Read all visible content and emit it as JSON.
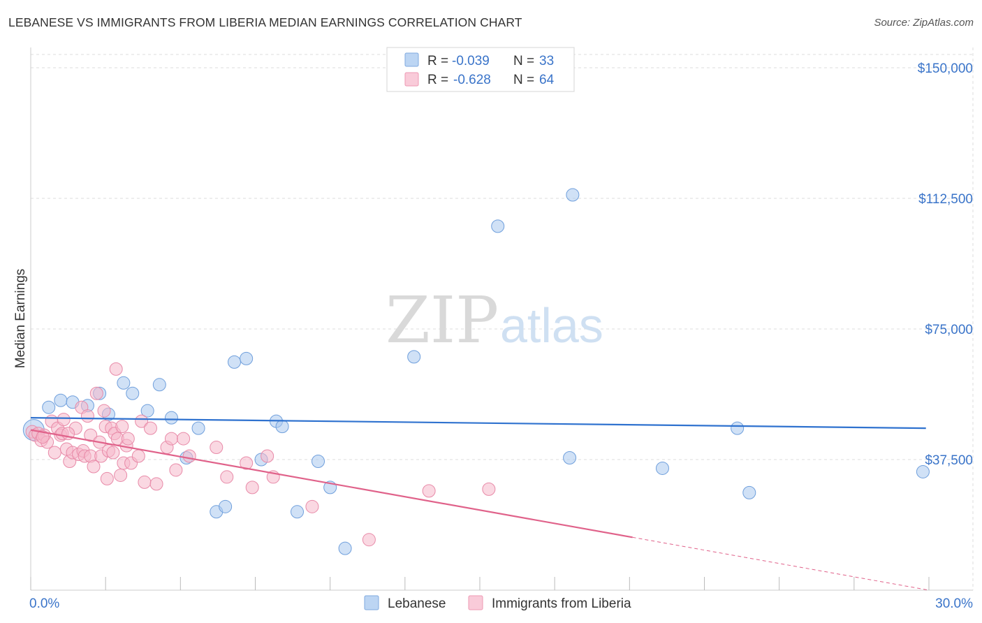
{
  "header": {
    "title": "LEBANESE VS IMMIGRANTS FROM LIBERIA MEDIAN EARNINGS CORRELATION CHART",
    "source": "Source: ZipAtlas.com"
  },
  "watermark": {
    "part1": "ZIP",
    "part2": "atlas"
  },
  "legend_top": {
    "rows": [
      {
        "r_label": "R =",
        "r_value": "-0.039",
        "n_label": "N =",
        "n_value": "33",
        "color": "#a9c8ef"
      },
      {
        "r_label": "R =",
        "r_value": "-0.628",
        "n_label": "N =",
        "n_value": "64",
        "color": "#f5b8cb"
      }
    ]
  },
  "legend_bottom": {
    "items": [
      {
        "label": "Lebanese",
        "color": "#a9c8ef"
      },
      {
        "label": "Immigrants from Liberia",
        "color": "#f5b8cb"
      }
    ]
  },
  "chart_data": {
    "type": "scatter",
    "title": "LEBANESE VS IMMIGRANTS FROM LIBERIA MEDIAN EARNINGS CORRELATION CHART",
    "xlabel": "",
    "ylabel": "Median Earnings",
    "xlim": [
      0,
      30
    ],
    "ylim": [
      0,
      155000
    ],
    "x_tick_labels": [
      "0.0%",
      "30.0%"
    ],
    "y_ticks": [
      37500,
      75000,
      112500,
      150000
    ],
    "y_tick_labels": [
      "$37,500",
      "$75,000",
      "$112,500",
      "$150,000"
    ],
    "grid": true,
    "legend_position": "top-center",
    "series": [
      {
        "name": "Lebanese",
        "color": "#a9c8ef",
        "stroke": "#6f9fdc",
        "trend_color": "#2f72cf",
        "trend": {
          "x0": 0,
          "y0": 49500,
          "x1": 29.9,
          "y1": 46500,
          "dash_from": null
        },
        "points": [
          [
            0.1,
            46000
          ],
          [
            0.6,
            52500
          ],
          [
            1.0,
            54500
          ],
          [
            1.4,
            54000
          ],
          [
            1.9,
            53000
          ],
          [
            2.3,
            56500
          ],
          [
            2.6,
            50500
          ],
          [
            3.1,
            59500
          ],
          [
            3.4,
            56500
          ],
          [
            3.9,
            51500
          ],
          [
            4.3,
            59000
          ],
          [
            4.7,
            49500
          ],
          [
            5.2,
            38000
          ],
          [
            5.6,
            46500
          ],
          [
            6.2,
            22500
          ],
          [
            6.5,
            24000
          ],
          [
            6.8,
            65500
          ],
          [
            7.2,
            66500
          ],
          [
            7.7,
            37500
          ],
          [
            8.2,
            48500
          ],
          [
            8.4,
            47000
          ],
          [
            8.9,
            22500
          ],
          [
            9.6,
            37000
          ],
          [
            10.0,
            29500
          ],
          [
            10.5,
            12000
          ],
          [
            12.8,
            67000
          ],
          [
            15.6,
            104500
          ],
          [
            18.0,
            38000
          ],
          [
            18.1,
            113500
          ],
          [
            21.1,
            35000
          ],
          [
            23.6,
            46500
          ],
          [
            24.0,
            28000
          ],
          [
            29.8,
            34000
          ]
        ]
      },
      {
        "name": "Immigrants from Liberia",
        "color": "#f5b8cb",
        "stroke": "#e88aa8",
        "trend_color": "#e0628a",
        "trend": {
          "x0": 0,
          "y0": 46000,
          "x1": 30,
          "y1": 0,
          "dash_from": 20.1
        },
        "points": [
          [
            0.05,
            45500
          ],
          [
            0.15,
            44500
          ],
          [
            0.25,
            45000
          ],
          [
            0.35,
            43000
          ],
          [
            0.45,
            44500
          ],
          [
            0.55,
            42500
          ],
          [
            0.7,
            48500
          ],
          [
            0.8,
            39500
          ],
          [
            0.9,
            46500
          ],
          [
            1.0,
            44500
          ],
          [
            1.05,
            45000
          ],
          [
            1.1,
            49000
          ],
          [
            1.2,
            40500
          ],
          [
            1.3,
            37000
          ],
          [
            1.4,
            39500
          ],
          [
            1.5,
            46500
          ],
          [
            1.6,
            39000
          ],
          [
            1.7,
            52500
          ],
          [
            1.75,
            40000
          ],
          [
            1.8,
            38500
          ],
          [
            1.9,
            50000
          ],
          [
            2.0,
            44500
          ],
          [
            2.0,
            38500
          ],
          [
            2.1,
            35500
          ],
          [
            2.2,
            56500
          ],
          [
            2.3,
            42500
          ],
          [
            2.35,
            38500
          ],
          [
            2.45,
            51500
          ],
          [
            2.5,
            47000
          ],
          [
            2.55,
            32000
          ],
          [
            2.6,
            40000
          ],
          [
            2.7,
            46500
          ],
          [
            2.75,
            39500
          ],
          [
            2.8,
            45000
          ],
          [
            2.85,
            63500
          ],
          [
            2.9,
            43500
          ],
          [
            3.0,
            33000
          ],
          [
            3.05,
            47000
          ],
          [
            3.1,
            36500
          ],
          [
            3.2,
            41500
          ],
          [
            3.25,
            43500
          ],
          [
            3.35,
            36500
          ],
          [
            3.6,
            38500
          ],
          [
            3.7,
            48500
          ],
          [
            3.8,
            31000
          ],
          [
            4.0,
            46500
          ],
          [
            4.2,
            30500
          ],
          [
            4.55,
            41000
          ],
          [
            4.7,
            43500
          ],
          [
            4.85,
            34500
          ],
          [
            5.1,
            43500
          ],
          [
            5.3,
            38500
          ],
          [
            6.2,
            41000
          ],
          [
            6.55,
            32500
          ],
          [
            7.2,
            36500
          ],
          [
            7.4,
            29500
          ],
          [
            7.9,
            38500
          ],
          [
            8.1,
            32500
          ],
          [
            9.4,
            24000
          ],
          [
            11.3,
            14500
          ],
          [
            13.3,
            28500
          ],
          [
            15.3,
            29000
          ],
          [
            0.4,
            44000
          ],
          [
            1.25,
            45000
          ]
        ]
      }
    ]
  }
}
